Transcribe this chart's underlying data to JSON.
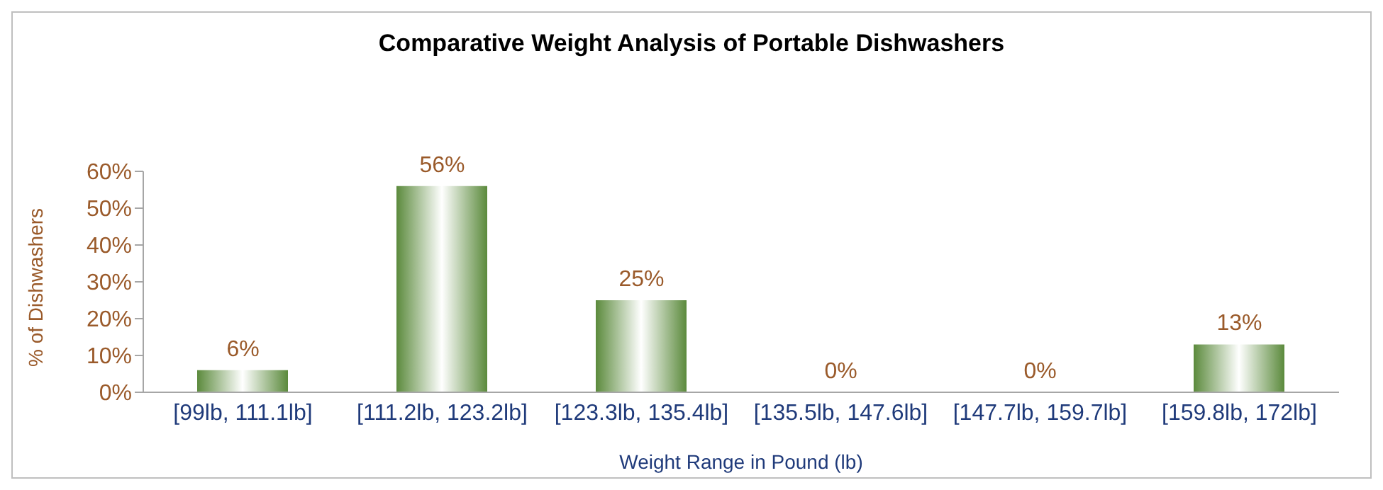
{
  "chart_data": {
    "type": "bar",
    "title": "Comparative Weight Analysis of Portable Dishwashers",
    "xlabel": "Weight Range in Pound  (lb)",
    "ylabel": "% of Dishwashers",
    "categories": [
      "[99lb, 111.1lb]",
      "[111.2lb, 123.2lb]",
      "[123.3lb, 135.4lb]",
      "[135.5lb, 147.6lb]",
      "[147.7lb, 159.7lb]",
      "[159.8lb, 172lb]"
    ],
    "values": [
      6,
      56,
      25,
      0,
      0,
      13
    ],
    "value_labels": [
      "6%",
      "56%",
      "25%",
      "0%",
      "0%",
      "13%"
    ],
    "color": "#5b8a3c",
    "ylim": [
      0,
      60
    ],
    "yticks": [
      {
        "value": 0,
        "label": "0%"
      },
      {
        "value": 10,
        "label": "10%"
      },
      {
        "value": 20,
        "label": "20%"
      },
      {
        "value": 30,
        "label": "30%"
      },
      {
        "value": 40,
        "label": "40%"
      },
      {
        "value": 50,
        "label": "50%"
      },
      {
        "value": 60,
        "label": "60%"
      }
    ],
    "grid": false,
    "legend": false
  }
}
